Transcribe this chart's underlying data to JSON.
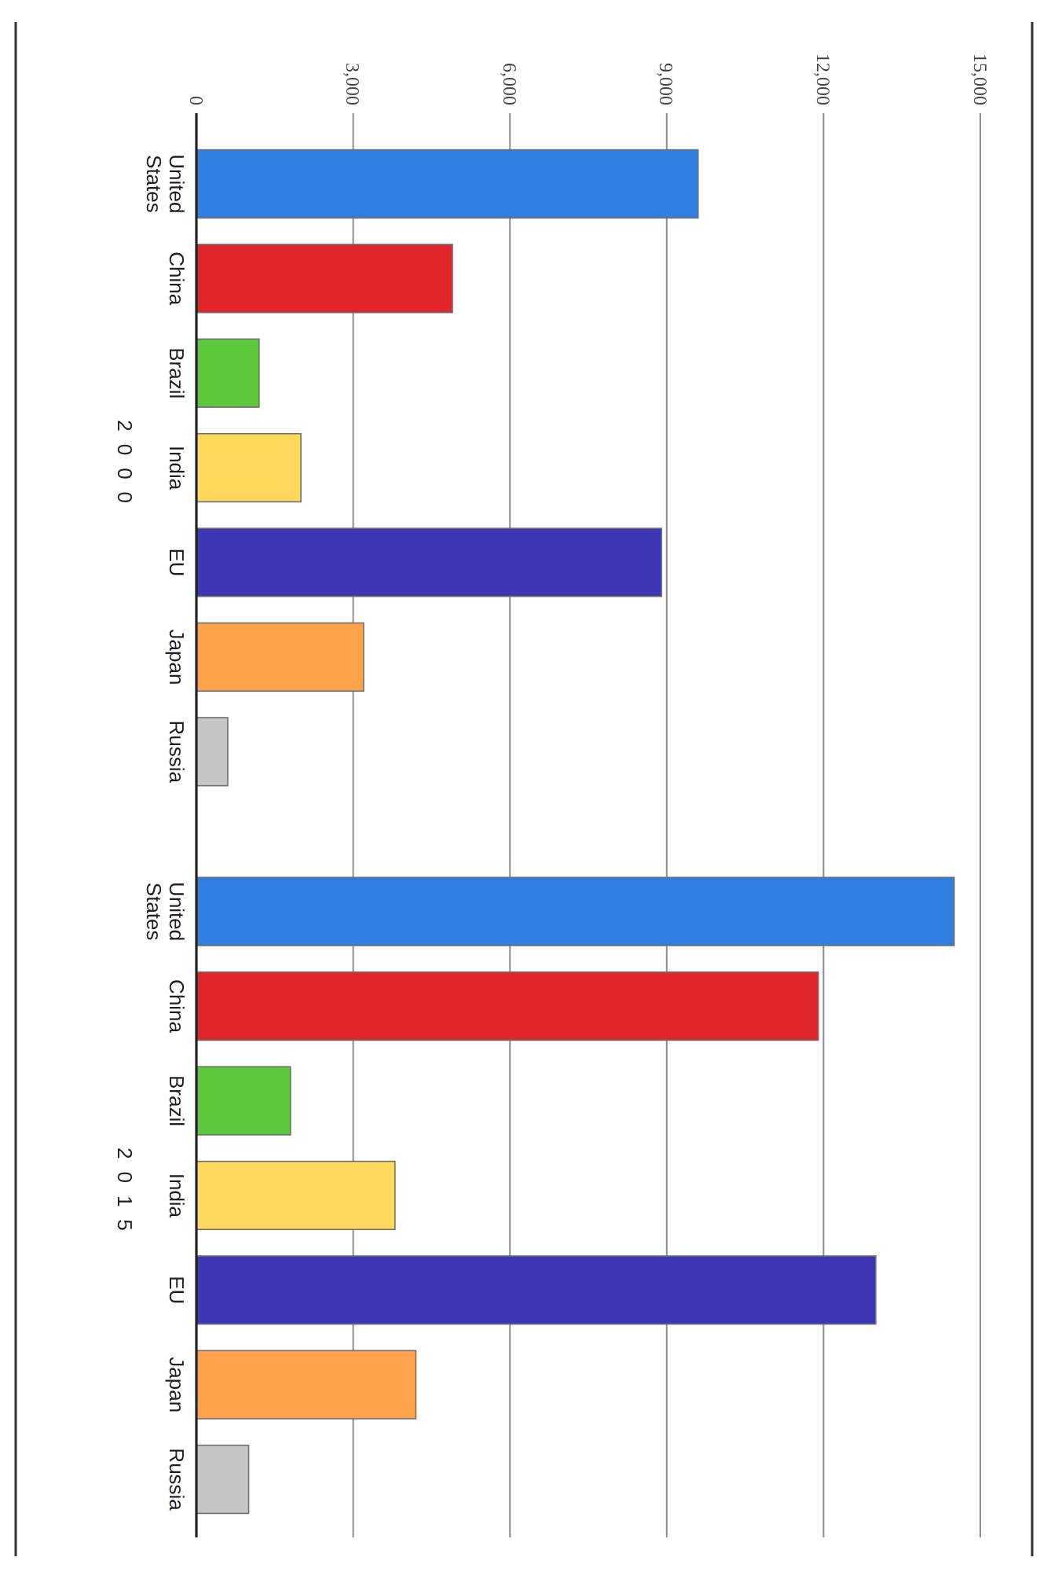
{
  "chart_data": {
    "type": "bar",
    "orientation": "horizontal",
    "categories": [
      "2000",
      "2015"
    ],
    "series": [
      {
        "name": "United States",
        "color": "#2f7ee0",
        "values": [
          9600,
          14500
        ]
      },
      {
        "name": "China",
        "color": "#e0262b",
        "values": [
          4900,
          11900
        ]
      },
      {
        "name": "Brazil",
        "color": "#5cc83c",
        "values": [
          1200,
          1800
        ]
      },
      {
        "name": "India",
        "color": "#ffd95c",
        "values": [
          2000,
          3800
        ]
      },
      {
        "name": "EU",
        "color": "#3c38b4",
        "values": [
          8900,
          13000
        ]
      },
      {
        "name": "Japan",
        "color": "#ffa24c",
        "values": [
          3200,
          4200
        ]
      },
      {
        "name": "Russia",
        "color": "#c6c6c6",
        "values": [
          600,
          1000
        ]
      }
    ],
    "xlim": [
      0,
      15000
    ],
    "xticks": [
      0,
      {
        "value": 3000,
        "label": "3,000"
      },
      {
        "value": 6000,
        "label": "6,000"
      },
      {
        "value": 9000,
        "label": "9,000"
      },
      {
        "value": 12000,
        "label": "12,000"
      },
      {
        "value": 15000,
        "label": "15,000"
      }
    ],
    "grid": "x"
  }
}
